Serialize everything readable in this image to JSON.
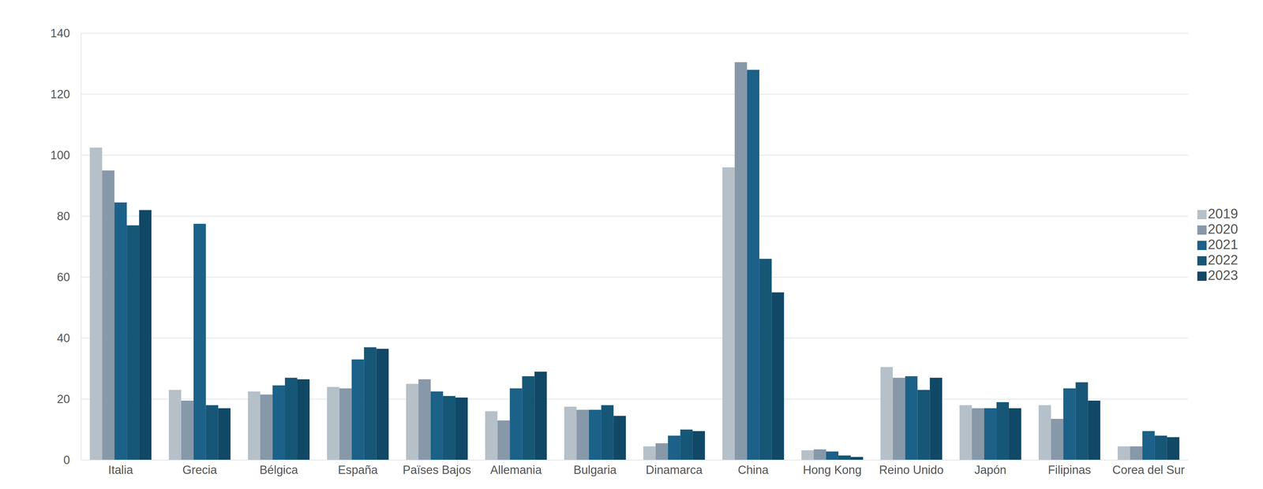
{
  "chart_data": {
    "type": "bar",
    "categories": [
      "Italia",
      "Grecia",
      "Bélgica",
      "España",
      "Païses Bajos",
      "Allemania",
      "Bulgaria",
      "Dinamarca",
      "China",
      "Hong Kong",
      "Reino Unido",
      "Japón",
      "Filipinas",
      "Corea del Sur"
    ],
    "series": [
      {
        "name": "2019",
        "color": "#b6c0c9",
        "values": [
          102.5,
          23,
          22.5,
          24,
          25,
          16,
          17.5,
          4.5,
          96,
          3.2,
          30.5,
          18,
          18,
          4.5
        ]
      },
      {
        "name": "2020",
        "color": "#8798a9",
        "values": [
          95,
          19.5,
          21.5,
          23.5,
          26.5,
          13,
          16.5,
          5.5,
          130.5,
          3.5,
          27,
          17,
          13.5,
          4.5
        ]
      },
      {
        "name": "2021",
        "color": "#1b6188",
        "values": [
          84.5,
          77.5,
          24.5,
          33,
          22.5,
          23.5,
          16.5,
          8,
          128,
          2.8,
          27.5,
          17,
          23.5,
          9.5
        ]
      },
      {
        "name": "2022",
        "color": "#165677",
        "values": [
          77,
          18,
          27,
          37,
          21,
          27.5,
          18,
          10,
          66,
          1.5,
          23,
          19,
          25.5,
          8
        ]
      },
      {
        "name": "2023",
        "color": "#114866",
        "values": [
          82,
          17,
          26.5,
          36.5,
          20.5,
          29,
          14.5,
          9.5,
          55,
          1,
          27,
          17,
          19.5,
          7.5
        ]
      }
    ],
    "ylim": [
      0,
      140
    ],
    "yticks": [
      0,
      20,
      40,
      60,
      80,
      100,
      120,
      140
    ],
    "grid": true,
    "legend": "right"
  }
}
